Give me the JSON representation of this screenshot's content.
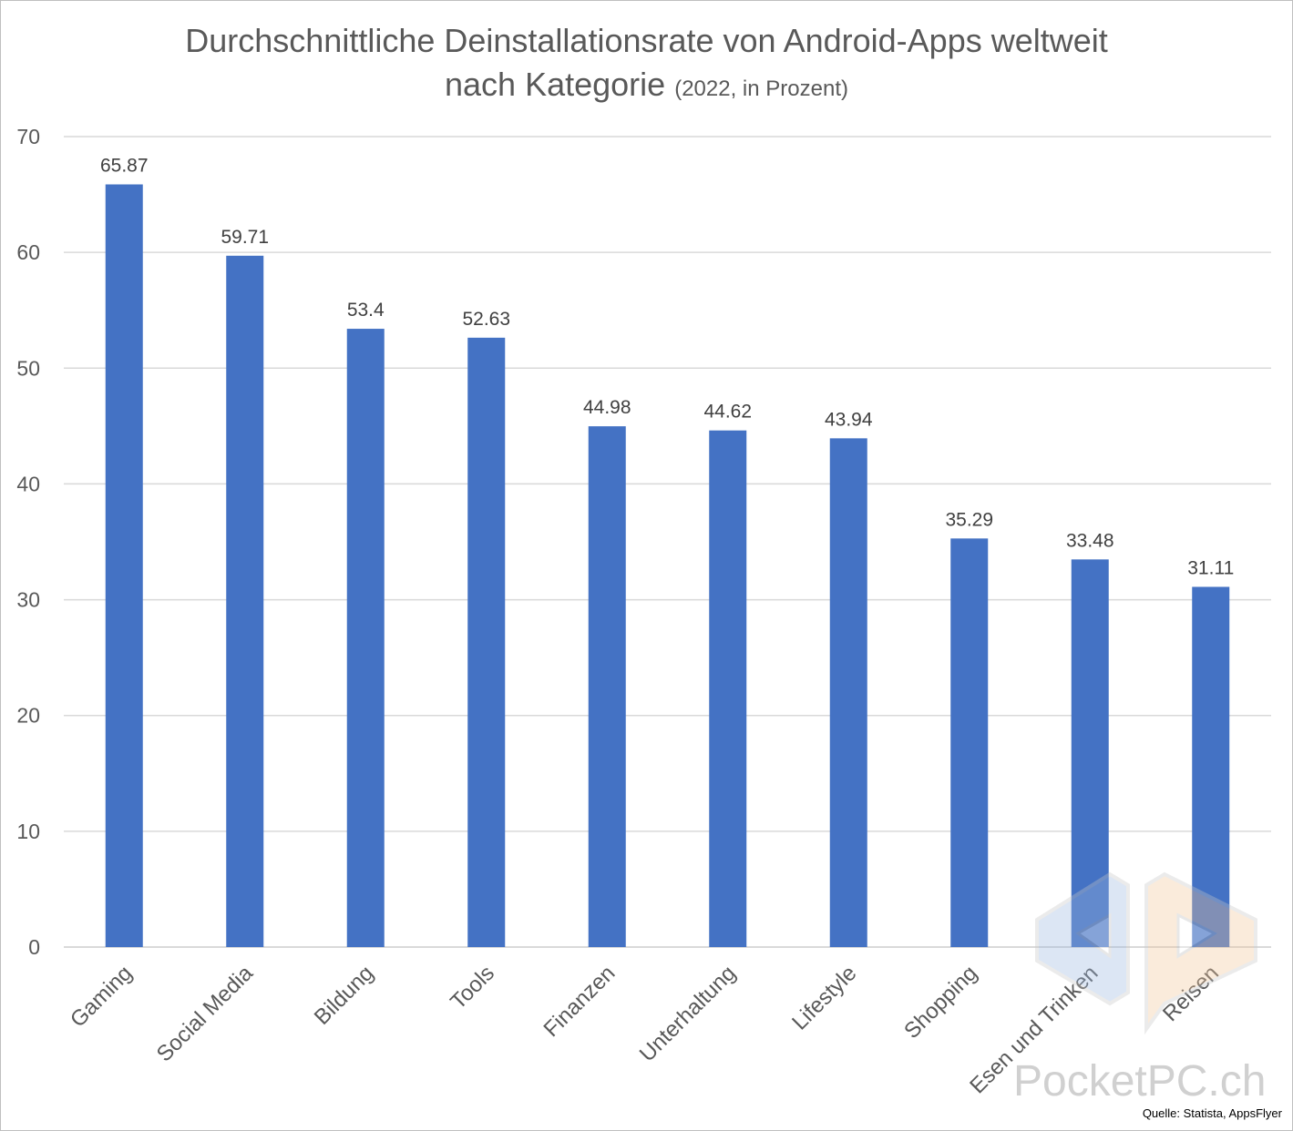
{
  "title": {
    "line1": "Durchschnittliche Deinstallationsrate von Android-Apps weltweit",
    "line2": "nach Kategorie",
    "subtitle": "(2022, in Prozent)"
  },
  "chart_data": {
    "type": "bar",
    "categories": [
      "Gaming",
      "Social Media",
      "Bildung",
      "Tools",
      "Finanzen",
      "Unterhaltung",
      "Lifestyle",
      "Shopping",
      "Esen und Trinken",
      "Reisen"
    ],
    "values": [
      65.87,
      59.71,
      53.4,
      52.63,
      44.98,
      44.62,
      43.94,
      35.29,
      33.48,
      31.11
    ],
    "value_labels": [
      "65.87",
      "59.71",
      "53.4",
      "52.63",
      "44.98",
      "44.62",
      "43.94",
      "35.29",
      "33.48",
      "31.11"
    ],
    "ylim": [
      0,
      70
    ],
    "yticks": [
      0,
      10,
      20,
      30,
      40,
      50,
      60,
      70
    ],
    "grid": true,
    "bar_color": "#4472C4",
    "grid_color": "#d9d9d9"
  },
  "watermark": "PocketPC.ch",
  "source": "Quelle: Statista, AppsFlyer"
}
